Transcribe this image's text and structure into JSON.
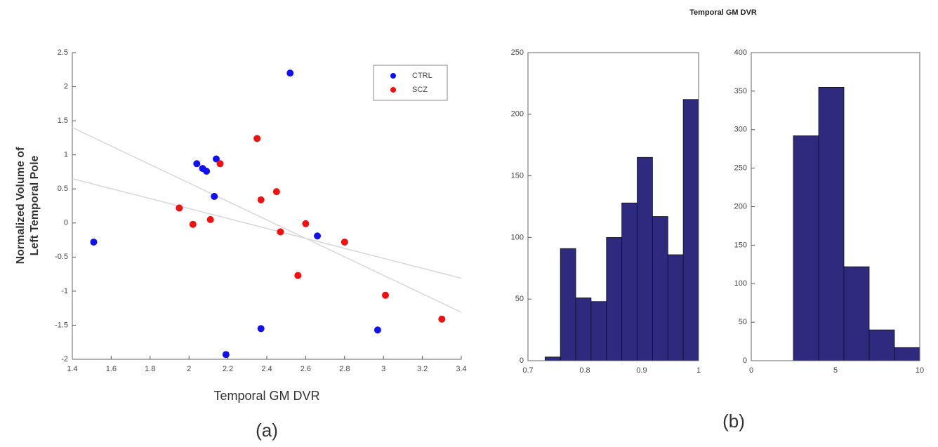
{
  "suptitle": "Temporal GM DVR",
  "panel_labels": [
    "(a)",
    "(b)"
  ],
  "chart_data": [
    {
      "type": "scatter",
      "xlabel": "Temporal GM DVR",
      "ylabel": [
        "Normalized Volume of",
        "Left Temporal Pole"
      ],
      "xlim": [
        1.4,
        3.4
      ],
      "xticks": [
        1.4,
        1.6,
        1.8,
        2,
        2.2,
        2.4,
        2.6,
        2.8,
        3,
        3.2,
        3.4
      ],
      "ylim": [
        -2,
        2.5
      ],
      "yticks": [
        -2,
        -1.5,
        -1,
        -0.5,
        0,
        0.5,
        1,
        1.5,
        2,
        2.5
      ],
      "legend": "upper right",
      "series": [
        {
          "name": "CTRL",
          "color": "#1010f0",
          "x": [
            1.51,
            2.52,
            2.04,
            2.07,
            2.09,
            2.14,
            2.13,
            2.19,
            2.37,
            2.66,
            2.97
          ],
          "y": [
            -0.28,
            2.2,
            0.87,
            0.8,
            0.76,
            0.94,
            0.39,
            -1.93,
            -1.55,
            -0.19,
            -1.57
          ]
        },
        {
          "name": "SCZ",
          "color": "#f01010",
          "x": [
            1.95,
            2.02,
            2.11,
            2.16,
            2.35,
            2.37,
            2.45,
            2.47,
            2.56,
            2.6,
            2.8,
            3.01,
            3.3
          ],
          "y": [
            0.22,
            -0.02,
            0.05,
            0.87,
            1.24,
            0.34,
            0.46,
            -0.13,
            -0.77,
            -0.01,
            -0.28,
            -1.06,
            -1.41
          ]
        }
      ],
      "trend_lines": [
        {
          "color": "#d8d8d8",
          "x": [
            1.4,
            3.4
          ],
          "y": [
            1.4,
            -1.31
          ]
        },
        {
          "color": "#d8d8d8",
          "x": [
            1.4,
            3.4
          ],
          "y": [
            0.65,
            -0.81
          ]
        }
      ]
    },
    {
      "type": "histogram",
      "color": "#2e2a7d",
      "bins": [
        0.73,
        0.757,
        0.784,
        0.811,
        0.838,
        0.865,
        0.892,
        0.919,
        0.946,
        0.973,
        1.0
      ],
      "values": [
        3,
        91,
        51,
        48,
        100,
        128,
        165,
        117,
        86,
        212
      ],
      "xlim": [
        0.7,
        1
      ],
      "xticks": [
        0.7,
        0.8,
        0.9,
        1
      ],
      "ylim": [
        0,
        250
      ],
      "yticks": [
        0,
        50,
        100,
        150,
        200,
        250
      ]
    },
    {
      "type": "histogram",
      "color": "#2e2a7d",
      "bins": [
        2.5,
        4,
        5.5,
        7,
        8.5,
        10
      ],
      "values": [
        292,
        355,
        122,
        40,
        17
      ],
      "xlim": [
        0,
        10
      ],
      "xticks": [
        0,
        5,
        10
      ],
      "ylim": [
        0,
        400
      ],
      "yticks": [
        0,
        50,
        100,
        150,
        200,
        250,
        300,
        350,
        400
      ]
    }
  ]
}
